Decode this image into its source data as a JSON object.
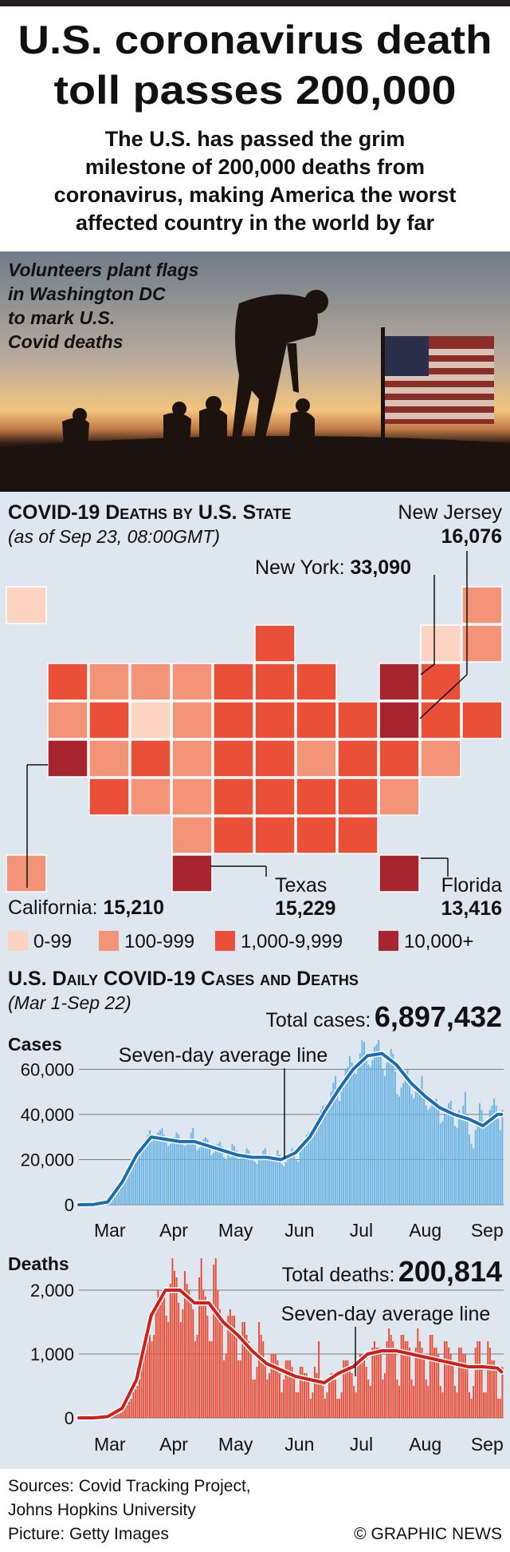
{
  "header": {
    "title": [
      "U.S. coronavirus death",
      "toll passes 200,000"
    ],
    "subtitle": [
      "The U.S. has passed the grim",
      "milestone of 200,000 deaths from",
      "coronavirus, making America the worst",
      "affected country in the world by far"
    ]
  },
  "photo": {
    "caption": [
      "Volunteers plant flags",
      "in Washington DC",
      "to mark U.S.",
      "Covid deaths"
    ]
  },
  "map": {
    "title": "COVID-19 Deaths by U.S. State",
    "subtitle": "(as of Sep 23, 08:00GMT)",
    "callouts": [
      {
        "label": "New Jersey",
        "value": "16,076"
      },
      {
        "label": "New York:",
        "value": "33,090"
      },
      {
        "label": "California:",
        "value": "15,210"
      },
      {
        "label": "Texas",
        "value": "15,229"
      },
      {
        "label": "Florida",
        "value": "13,416"
      }
    ],
    "legend": [
      {
        "label": "0-99",
        "color": "#fbd3c0"
      },
      {
        "label": "100-999",
        "color": "#f39479"
      },
      {
        "label": "1,000-9,999",
        "color": "#ea4f37"
      },
      {
        "label": "10,000+",
        "color": "#a7252f"
      }
    ],
    "region_colors": [
      "#fbd3c0",
      "#f39479",
      "#ea4f37",
      "#fbd3c0",
      "#f39479",
      "#ea4f37",
      "#f39479",
      "#f39479",
      "#f39479",
      "#ea4f37",
      "#ea4f37",
      "#ea4f37",
      "#a7252f",
      "#ea4f37",
      "#f39479",
      "#ea4f37",
      "#fbd3c0",
      "#f39479",
      "#ea4f37",
      "#ea4f37",
      "#ea4f37",
      "#ea4f37",
      "#a7252f",
      "#ea4f37",
      "#ea4f37",
      "#a7252f",
      "#f39479",
      "#ea4f37",
      "#f39479",
      "#ea4f37",
      "#ea4f37",
      "#f39479",
      "#ea4f37",
      "#ea4f37",
      "#f39479",
      "#ea4f37",
      "#f39479",
      "#f39479",
      "#ea4f37",
      "#ea4f37",
      "#ea4f37",
      "#ea4f37",
      "#f39479",
      "#f39479",
      "#ea4f37",
      "#ea4f37",
      "#ea4f37",
      "#ea4f37",
      "#f39479",
      "#a7252f",
      "#a7252f"
    ]
  },
  "section": {
    "title": "U.S. Daily COVID-19 Cases and Deaths",
    "subtitle": "(Mar 1-Sep 22)"
  },
  "chart_data": [
    {
      "type": "bar",
      "title": "Cases",
      "total_label": "Total cases:",
      "total": "6,897,432",
      "annotation": "Seven-day average line",
      "xlim": [
        0,
        206
      ],
      "xticks": [
        {
          "value": 15,
          "label": "Mar"
        },
        {
          "value": 46,
          "label": "Apr"
        },
        {
          "value": 76,
          "label": "May"
        },
        {
          "value": 107,
          "label": "Jun"
        },
        {
          "value": 137,
          "label": "Jul"
        },
        {
          "value": 168,
          "label": "Aug"
        },
        {
          "value": 198,
          "label": "Sep"
        }
      ],
      "ylim": [
        0,
        75000
      ],
      "yticks": [
        0,
        {
          "value": 20000,
          "label": "20,000"
        },
        {
          "value": 40000,
          "label": "40,000"
        },
        {
          "value": 60000,
          "label": "60,000"
        }
      ],
      "grid": true,
      "series": [
        {
          "type": "bar",
          "color": "#6db5e3",
          "values": [
            0,
            0,
            10,
            20,
            30,
            50,
            80,
            100,
            150,
            200,
            300,
            400,
            600,
            800,
            1000,
            1500,
            2500,
            3500,
            5000,
            6500,
            8000,
            10000,
            11000,
            12000,
            15000,
            18000,
            19000,
            20000,
            21000,
            23000,
            26000,
            27000,
            29000,
            31000,
            33000,
            28000,
            30000,
            31000,
            32000,
            33000,
            34000,
            31000,
            28000,
            26000,
            27000,
            29000,
            30000,
            32000,
            31000,
            27000,
            27000,
            26000,
            28000,
            29000,
            32000,
            34000,
            27000,
            24000,
            25000,
            27000,
            29000,
            30000,
            29000,
            25000,
            22000,
            23000,
            25000,
            27000,
            28000,
            26000,
            21000,
            20000,
            22000,
            21000,
            27000,
            26000,
            24000,
            20000,
            21000,
            21000,
            22000,
            25000,
            24000,
            22000,
            20000,
            19000,
            18000,
            20000,
            22000,
            24000,
            25000,
            21000,
            20000,
            21000,
            20000,
            21000,
            24000,
            22000,
            18000,
            17000,
            19000,
            21000,
            22000,
            25000,
            24000,
            20000,
            19000,
            24000,
            27000,
            29000,
            31000,
            32000,
            30000,
            31000,
            36000,
            38000,
            39000,
            42000,
            44000,
            42000,
            41000,
            46000,
            50000,
            54000,
            57000,
            50000,
            46000,
            50000,
            55000,
            60000,
            61000,
            66000,
            63000,
            60000,
            58000,
            63000,
            67000,
            73000,
            72000,
            64000,
            62000,
            61000,
            64000,
            70000,
            71000,
            73000,
            67000,
            60000,
            57000,
            63000,
            66000,
            69000,
            67000,
            59000,
            49000,
            48000,
            52000,
            54000,
            57000,
            60000,
            55000,
            49000,
            47000,
            50000,
            53000,
            52000,
            57000,
            50000,
            44000,
            42000,
            43000,
            45000,
            46000,
            47000,
            44000,
            36000,
            37000,
            40000,
            41000,
            45000,
            46000,
            42000,
            35000,
            34000,
            42000,
            40000,
            44000,
            50000,
            40000,
            31000,
            27000,
            25000,
            33000,
            37000,
            45000,
            42000,
            36000,
            35000,
            38000,
            42000,
            44000,
            47000,
            44000,
            38000,
            33000,
            42000
          ]
        },
        {
          "type": "line",
          "color": "#1b6cb2",
          "x": [
            0,
            7,
            14,
            21,
            28,
            35,
            42,
            49,
            56,
            63,
            70,
            77,
            84,
            91,
            98,
            105,
            112,
            119,
            126,
            133,
            140,
            147,
            154,
            161,
            168,
            175,
            182,
            189,
            196,
            203,
            205
          ],
          "values": [
            0,
            100,
            1200,
            10000,
            22000,
            30000,
            29000,
            28000,
            28000,
            26000,
            24000,
            22000,
            21000,
            21000,
            20000,
            23000,
            30000,
            41000,
            51000,
            60000,
            66000,
            67000,
            62000,
            54000,
            48000,
            43000,
            40000,
            38000,
            35000,
            40000,
            40000
          ]
        }
      ]
    },
    {
      "type": "bar",
      "title": "Deaths",
      "total_label": "Total deaths:",
      "total": "200,814",
      "annotation": "Seven-day average line",
      "xlim": [
        0,
        206
      ],
      "xticks": [
        {
          "value": 15,
          "label": "Mar"
        },
        {
          "value": 46,
          "label": "Apr"
        },
        {
          "value": 76,
          "label": "May"
        },
        {
          "value": 107,
          "label": "Jun"
        },
        {
          "value": 137,
          "label": "Jul"
        },
        {
          "value": 168,
          "label": "Aug"
        },
        {
          "value": 198,
          "label": "Sep"
        }
      ],
      "ylim": [
        0,
        2500
      ],
      "yticks": [
        0,
        {
          "value": 1000,
          "label": "1,000"
        },
        {
          "value": 2000,
          "label": "2,000"
        }
      ],
      "grid": true,
      "series": [
        {
          "type": "bar",
          "color": "#e8503a",
          "values": [
            0,
            0,
            0,
            0,
            0,
            0,
            0,
            0,
            0,
            0,
            0,
            10,
            10,
            10,
            20,
            20,
            30,
            40,
            50,
            60,
            80,
            120,
            150,
            200,
            250,
            300,
            400,
            450,
            500,
            600,
            900,
            1000,
            1100,
            1200,
            1300,
            1200,
            1300,
            1800,
            2000,
            1900,
            2000,
            2000,
            1600,
            1500,
            2100,
            2500,
            2300,
            2200,
            1800,
            1500,
            1700,
            2300,
            2100,
            2000,
            1900,
            1700,
            1200,
            1300,
            2200,
            2500,
            2000,
            1900,
            1600,
            1200,
            1200,
            2400,
            2500,
            2000,
            1700,
            1500,
            900,
            1000,
            1600,
            1700,
            1600,
            1600,
            1300,
            900,
            900,
            1500,
            1500,
            1300,
            1200,
            1000,
            600,
            600,
            800,
            1500,
            1300,
            1200,
            900,
            600,
            700,
            1000,
            1000,
            1000,
            900,
            700,
            400,
            600,
            900,
            900,
            900,
            800,
            700,
            400,
            400,
            800,
            800,
            700,
            700,
            600,
            300,
            400,
            800,
            700,
            1200,
            600,
            500,
            300,
            400,
            600,
            700,
            700,
            600,
            300,
            300,
            400,
            900,
            900,
            900,
            800,
            700,
            500,
            400,
            900,
            1000,
            1000,
            900,
            800,
            600,
            500,
            1100,
            1200,
            1100,
            1100,
            1000,
            600,
            700,
            1200,
            1400,
            1300,
            1200,
            1100,
            600,
            500,
            1300,
            1300,
            1200,
            1200,
            1100,
            600,
            500,
            1100,
            1400,
            1200,
            1100,
            1000,
            600,
            500,
            1300,
            1300,
            1100,
            1100,
            1000,
            500,
            400,
            1200,
            1200,
            1100,
            1000,
            900,
            500,
            400,
            1100,
            1100,
            1000,
            1000,
            800,
            400,
            300,
            500,
            1100,
            1200,
            1200,
            800,
            400,
            400,
            1200,
            1100,
            900,
            900,
            800,
            300,
            300,
            800
          ]
        },
        {
          "type": "line",
          "color": "#d0201c",
          "x": [
            0,
            7,
            14,
            21,
            28,
            35,
            42,
            49,
            56,
            63,
            70,
            77,
            84,
            91,
            98,
            105,
            112,
            119,
            126,
            133,
            140,
            147,
            154,
            161,
            168,
            175,
            182,
            189,
            196,
            203,
            205
          ],
          "values": [
            0,
            0,
            20,
            150,
            600,
            1600,
            2000,
            2000,
            1800,
            1800,
            1500,
            1300,
            1050,
            850,
            750,
            650,
            600,
            550,
            700,
            800,
            1000,
            1050,
            1050,
            1000,
            950,
            900,
            850,
            800,
            800,
            780,
            720
          ]
        }
      ]
    }
  ],
  "footer": {
    "sources": [
      "Sources: Covid Tracking Project,",
      "Johns Hopkins University",
      "Picture: Getty Images"
    ],
    "credit": "© GRAPHIC NEWS"
  }
}
